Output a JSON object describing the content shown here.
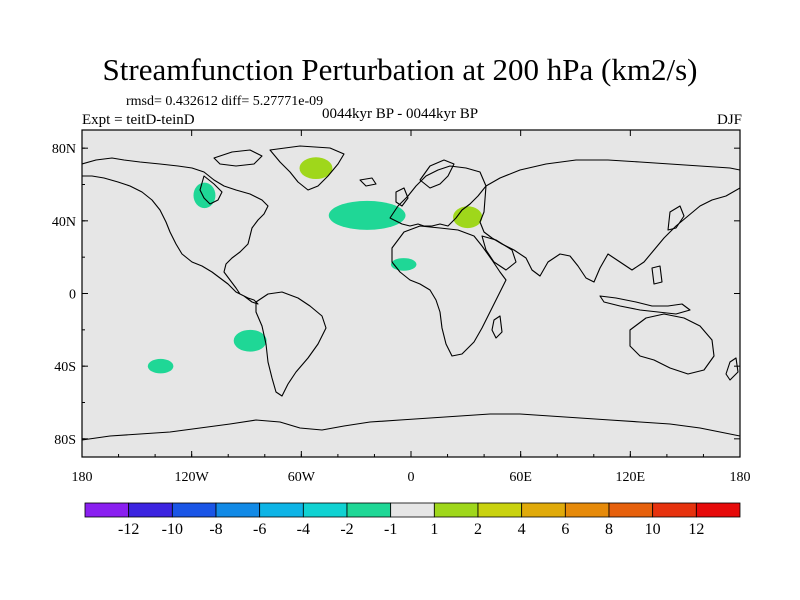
{
  "title": "Streamfunction Perturbation at 200 hPa (km2/s)",
  "stats_text": "rmsd= 0.432612  diff= 5.27771e-09",
  "experiment_text": "Expt = teitD-teinD",
  "period_text": "0044kyr BP - 0044kyr BP",
  "season_text": "DJF",
  "colors": {
    "background": "#e6e6e6",
    "coast": "#000000",
    "neg_minus2_minus1": "#1fd796",
    "pos_1_2": "#9fd71b"
  },
  "axes": {
    "lat_ticks": [
      {
        "value": 80,
        "label": "80N"
      },
      {
        "value": 40,
        "label": "40N"
      },
      {
        "value": 0,
        "label": "0"
      },
      {
        "value": -40,
        "label": "40S"
      },
      {
        "value": -80,
        "label": "80S"
      }
    ],
    "lon_ticks": [
      {
        "value": -180,
        "label": "180"
      },
      {
        "value": -120,
        "label": "120W"
      },
      {
        "value": -60,
        "label": "60W"
      },
      {
        "value": 0,
        "label": "0"
      },
      {
        "value": 60,
        "label": "60E"
      },
      {
        "value": 120,
        "label": "120E"
      },
      {
        "value": 180,
        "label": "180"
      }
    ]
  },
  "anomalies": [
    {
      "name": "greenland-blob",
      "lon": -52,
      "lat": 69,
      "rlon": 9,
      "rlat": 6,
      "cls": "pos"
    },
    {
      "name": "hudson-blob",
      "lon": -113,
      "lat": 54,
      "rlon": 6,
      "rlat": 7,
      "cls": "neg"
    },
    {
      "name": "north-atlantic-blob",
      "lon": -24,
      "lat": 43,
      "rlon": 21,
      "rlat": 8,
      "cls": "neg"
    },
    {
      "name": "black-sea-blob",
      "lon": 31,
      "lat": 42,
      "rlon": 8,
      "rlat": 6,
      "cls": "pos"
    },
    {
      "name": "sahara-blob",
      "lon": -4,
      "lat": 16,
      "rlon": 7,
      "rlat": 3.5,
      "cls": "neg"
    },
    {
      "name": "south-pacific-blob",
      "lon": -88,
      "lat": -26,
      "rlon": 9,
      "rlat": 6,
      "cls": "neg"
    },
    {
      "name": "south-pacific-west-blob",
      "lon": -137,
      "lat": -40,
      "rlon": 7,
      "rlat": 4,
      "cls": "neg"
    }
  ],
  "colorbar": {
    "labels": [
      "-12",
      "-10",
      "-8",
      "-6",
      "-4",
      "-2",
      "-1",
      "1",
      "2",
      "4",
      "6",
      "8",
      "10",
      "12"
    ],
    "colors": [
      "#8a1ff0",
      "#3c24e0",
      "#1a55e6",
      "#128ae6",
      "#0eb4e6",
      "#10d2d2",
      "#1fd796",
      "#e6e6e6",
      "#9fd71b",
      "#c9d20f",
      "#e0aa0a",
      "#e68a0a",
      "#e6600c",
      "#e6320e",
      "#e60a0a"
    ]
  }
}
